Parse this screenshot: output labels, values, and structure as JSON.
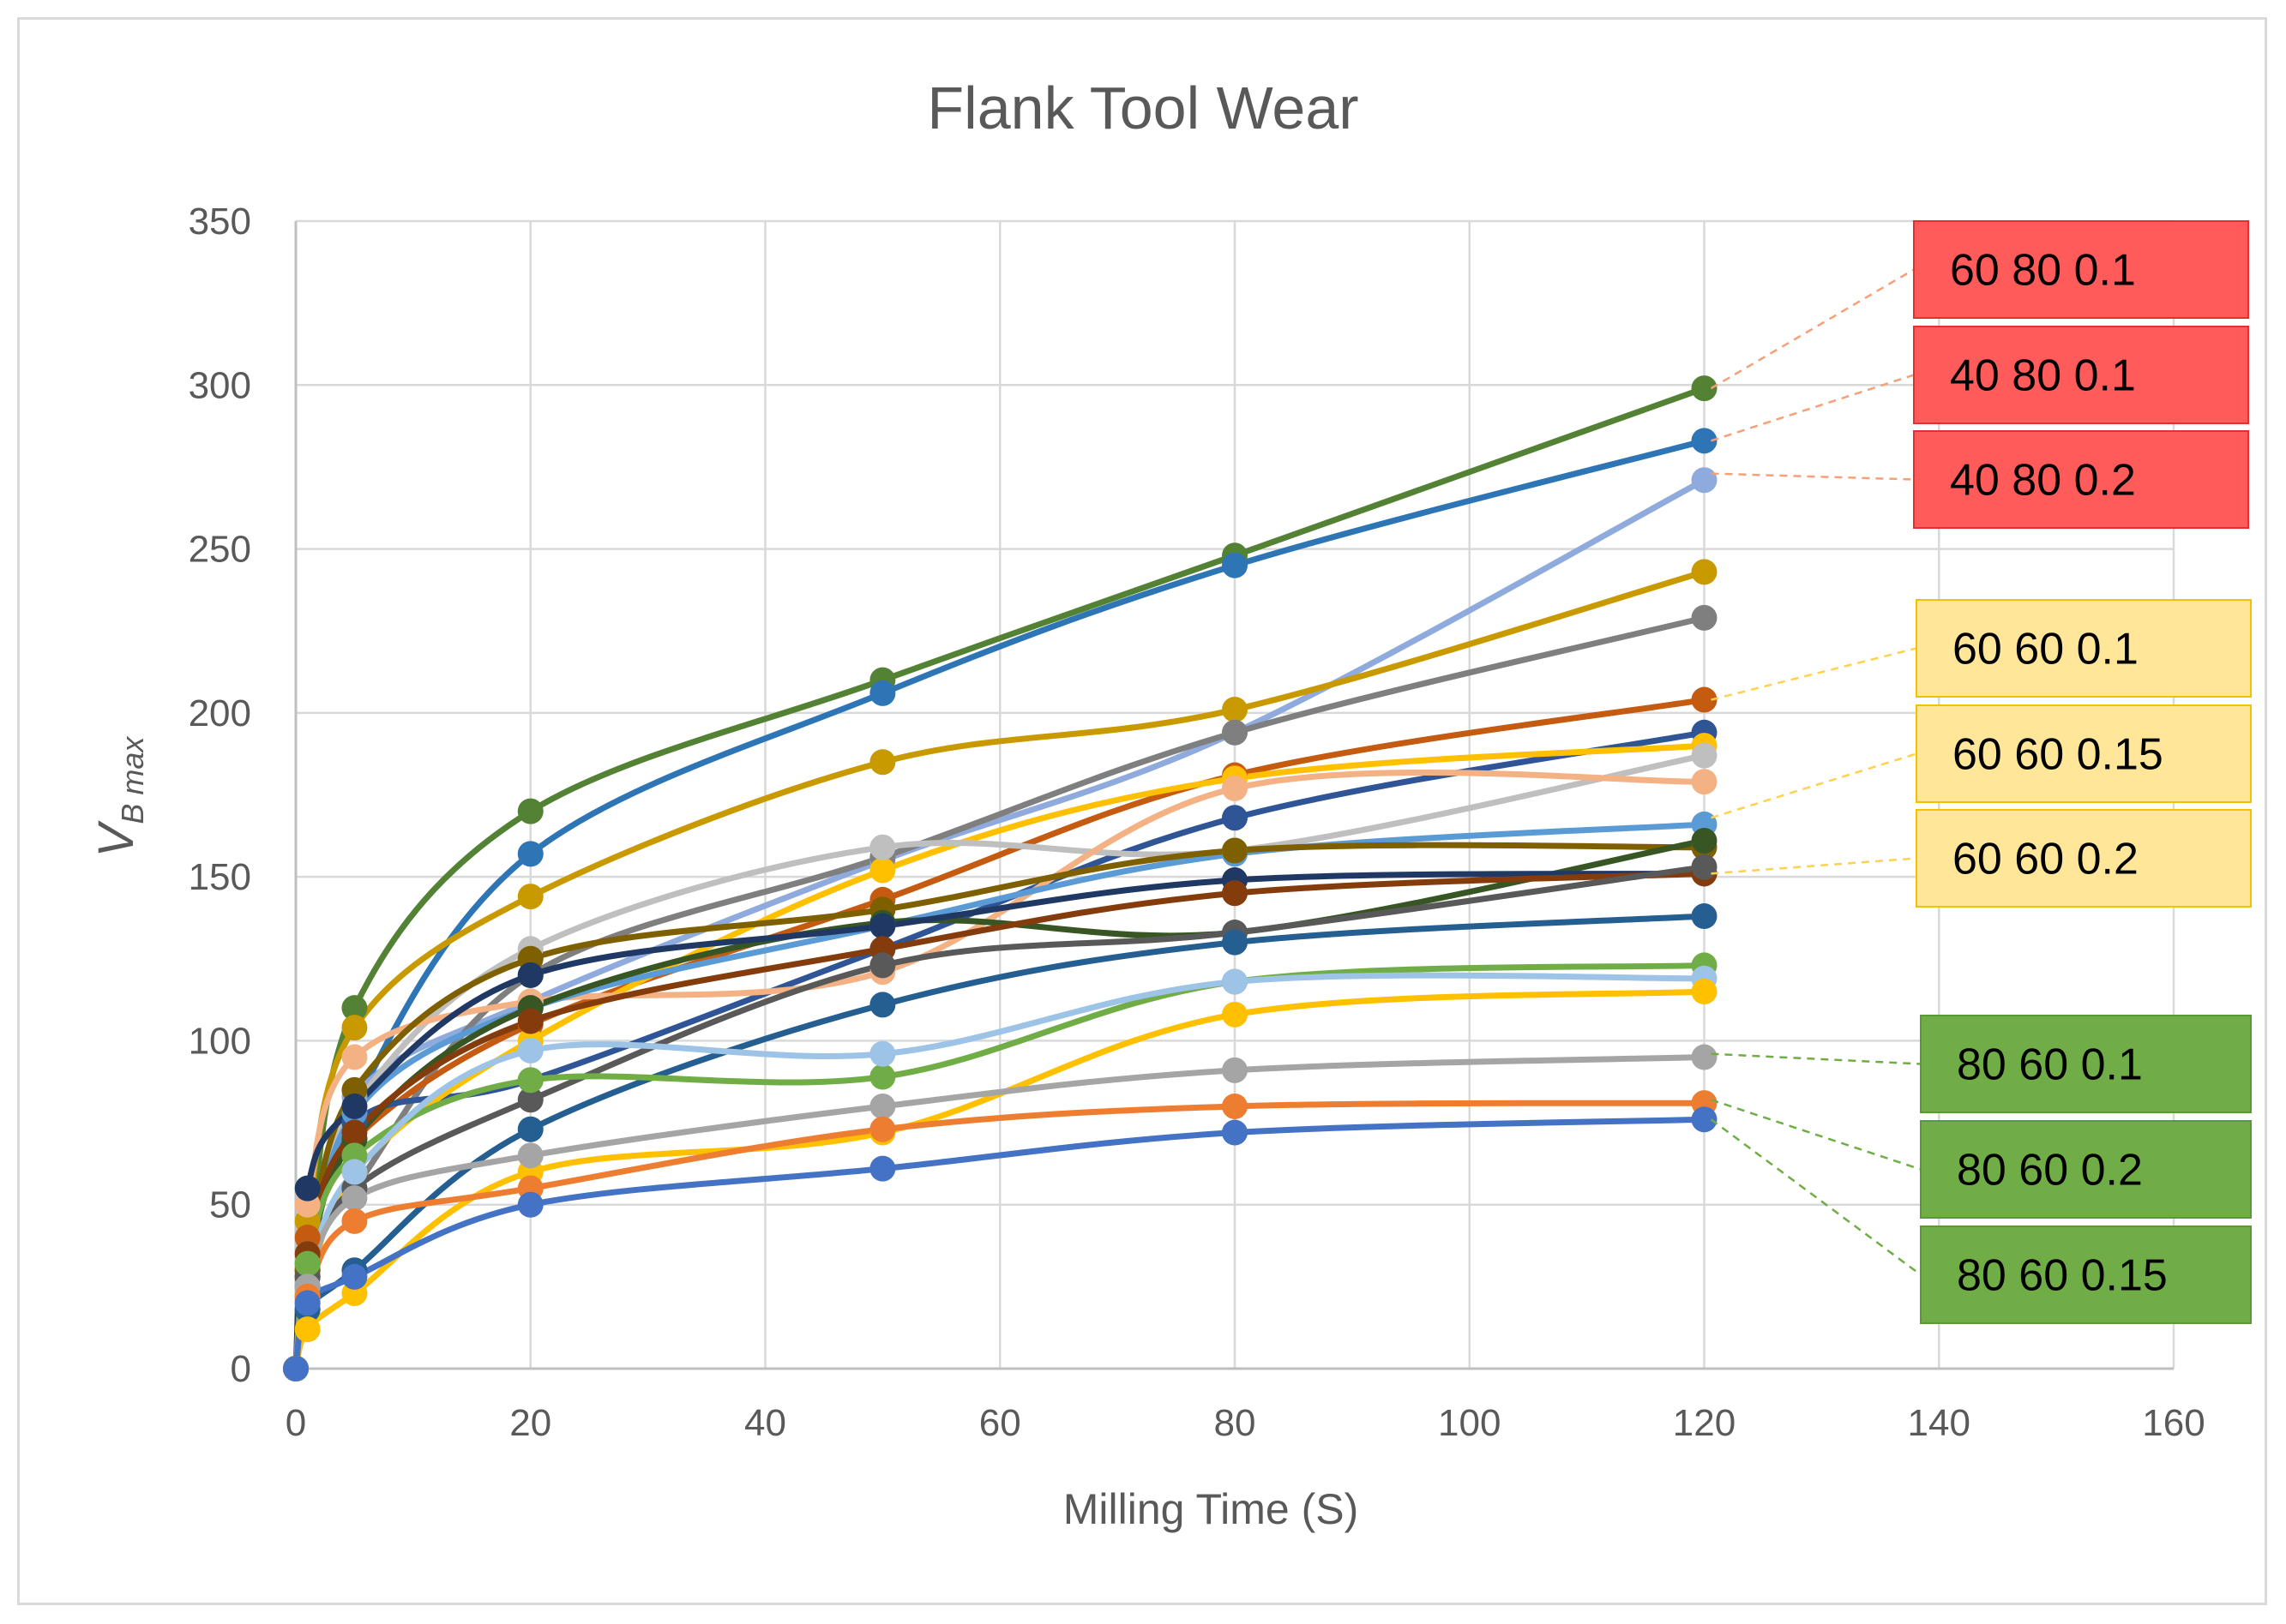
{
  "chart_data": {
    "type": "line",
    "title": "Flank Tool Wear",
    "xlabel": "Milling Time (S)",
    "ylabel_main": "V",
    "ylabel_sub": "B max",
    "xlim": [
      0,
      160
    ],
    "ylim": [
      0,
      350
    ],
    "x_ticks": [
      0,
      20,
      40,
      60,
      80,
      100,
      120,
      140,
      160
    ],
    "y_ticks": [
      0,
      50,
      100,
      150,
      200,
      250,
      300,
      350
    ],
    "grid": true,
    "x": [
      0,
      1,
      5,
      20,
      50,
      80,
      120
    ],
    "series": [
      {
        "name": "s1",
        "color": "#548235",
        "values": [
          0,
          30,
          110,
          170,
          210,
          248,
          299
        ]
      },
      {
        "name": "s2",
        "color": "#2e75b6",
        "values": [
          0,
          25,
          80,
          157,
          206,
          245,
          283
        ]
      },
      {
        "name": "s3",
        "color": "#8faadc",
        "values": [
          0,
          28,
          83,
          112,
          155,
          194,
          271
        ]
      },
      {
        "name": "s4",
        "color": "#c99a00",
        "values": [
          0,
          45,
          104,
          144,
          185,
          201,
          243
        ]
      },
      {
        "name": "s5",
        "color": "#7f7f7f",
        "values": [
          0,
          32,
          55,
          120,
          156,
          194,
          229
        ]
      },
      {
        "name": "s6",
        "color": "#c55a11",
        "values": [
          0,
          40,
          70,
          105,
          143,
          181,
          204
        ]
      },
      {
        "name": "s7",
        "color": "#2f5597",
        "values": [
          0,
          25,
          75,
          88,
          128,
          168,
          194
        ]
      },
      {
        "name": "s8",
        "color": "#ffc000",
        "values": [
          0,
          20,
          60,
          100,
          152,
          180,
          190
        ]
      },
      {
        "name": "s9",
        "color": "#bfbfbf",
        "values": [
          0,
          35,
          80,
          128,
          159,
          158,
          187
        ]
      },
      {
        "name": "s10",
        "color": "#f4b183",
        "values": [
          0,
          50,
          95,
          112,
          121,
          177,
          179
        ]
      },
      {
        "name": "s11",
        "color": "#5b9bd5",
        "values": [
          0,
          22,
          78,
          110,
          135,
          157,
          166
        ]
      },
      {
        "name": "s12",
        "color": "#7f6000",
        "values": [
          0,
          30,
          85,
          125,
          140,
          158,
          159
        ]
      },
      {
        "name": "s13",
        "color": "#375623",
        "values": [
          0,
          28,
          70,
          110,
          136,
          133,
          161
        ]
      },
      {
        "name": "s14",
        "color": "#203864",
        "values": [
          0,
          55,
          80,
          120,
          135,
          149,
          151
        ]
      },
      {
        "name": "s15",
        "color": "#843c0c",
        "values": [
          0,
          35,
          72,
          106,
          128,
          145,
          151
        ]
      },
      {
        "name": "s16",
        "color": "#595959",
        "values": [
          0,
          28,
          55,
          82,
          123,
          133,
          153
        ]
      },
      {
        "name": "s17",
        "color": "#255e91",
        "values": [
          0,
          18,
          30,
          73,
          111,
          130,
          138
        ]
      },
      {
        "name": "s18",
        "color": "#70ad47",
        "values": [
          0,
          32,
          65,
          88,
          89,
          118,
          123
        ]
      },
      {
        "name": "s19",
        "color": "#9dc3e6",
        "values": [
          0,
          25,
          60,
          97,
          96,
          118,
          119
        ]
      },
      {
        "name": "s20",
        "color": "#ffc000",
        "values": [
          0,
          12,
          23,
          60,
          72,
          108,
          115
        ]
      },
      {
        "name": "s21",
        "color": "#a5a5a5",
        "values": [
          0,
          25,
          52,
          65,
          80,
          91,
          95
        ]
      },
      {
        "name": "s22",
        "color": "#ed7d31",
        "values": [
          0,
          22,
          45,
          55,
          73,
          80,
          81
        ]
      },
      {
        "name": "s23",
        "color": "#4472c4",
        "values": [
          0,
          20,
          28,
          50,
          61,
          72,
          76
        ]
      }
    ],
    "callouts": [
      {
        "label": "60 80 0.1",
        "group": "red",
        "target_x": 120,
        "target_y": 299
      },
      {
        "label": "40 80 0.1",
        "group": "red",
        "target_x": 120,
        "target_y": 283
      },
      {
        "label": "40 80 0.2",
        "group": "red",
        "target_x": 120,
        "target_y": 273
      },
      {
        "label": "60 60 0.1",
        "group": "yellow",
        "target_x": 120,
        "target_y": 204
      },
      {
        "label": "60 60 0.15",
        "group": "yellow",
        "target_x": 120,
        "target_y": 168
      },
      {
        "label": "60 60 0.2",
        "group": "yellow",
        "target_x": 120,
        "target_y": 151
      },
      {
        "label": "80 60 0.1",
        "group": "green",
        "target_x": 120,
        "target_y": 96
      },
      {
        "label": "80 60 0.2",
        "group": "green",
        "target_x": 120,
        "target_y": 82
      },
      {
        "label": "80 60 0.15",
        "group": "green",
        "target_x": 120,
        "target_y": 76
      }
    ],
    "callout_colors": {
      "red": {
        "fill": "#ff5b5b",
        "border": "#e03030",
        "line": "#f4a07a"
      },
      "yellow": {
        "fill": "#ffe699",
        "border": "#f2c200",
        "line": "#ffd24d"
      },
      "green": {
        "fill": "#70ad47",
        "border": "#5a9a35",
        "line": "#70ad47"
      }
    }
  }
}
